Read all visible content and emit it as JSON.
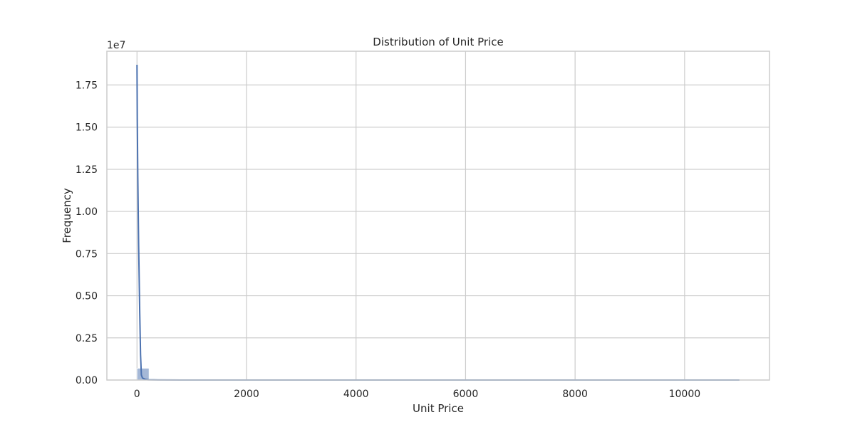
{
  "chart_data": {
    "type": "histogram",
    "title": "Distribution of Unit Price",
    "xlabel": "Unit Price",
    "ylabel": "Frequency",
    "y_offset_label": "1e7",
    "xlim": [
      -550,
      11550
    ],
    "ylim": [
      0,
      19500000
    ],
    "x_ticks": [
      0,
      2000,
      4000,
      6000,
      8000,
      10000
    ],
    "x_tick_labels": [
      "0",
      "2000",
      "4000",
      "6000",
      "8000",
      "10000"
    ],
    "y_ticks": [
      0,
      2500000,
      5000000,
      7500000,
      10000000,
      12500000,
      15000000,
      17500000
    ],
    "y_tick_labels": [
      "0.00",
      "0.25",
      "0.50",
      "0.75",
      "1.00",
      "1.25",
      "1.50",
      "1.75"
    ],
    "grid": true,
    "bar_color": "#4c72b0",
    "bins": [
      {
        "x0": 0,
        "x1": 220,
        "count": 700000
      }
    ],
    "kde": {
      "color": "#4c72b0",
      "x": [
        0,
        5,
        15,
        30,
        50,
        65,
        80,
        100,
        150,
        200,
        400,
        1000,
        3000,
        6000,
        11000
      ],
      "y": [
        18700000,
        15500000,
        12000000,
        8000000,
        4000000,
        1500000,
        300000,
        120000,
        40000,
        15000,
        5000,
        1000,
        100,
        10,
        0
      ]
    }
  }
}
